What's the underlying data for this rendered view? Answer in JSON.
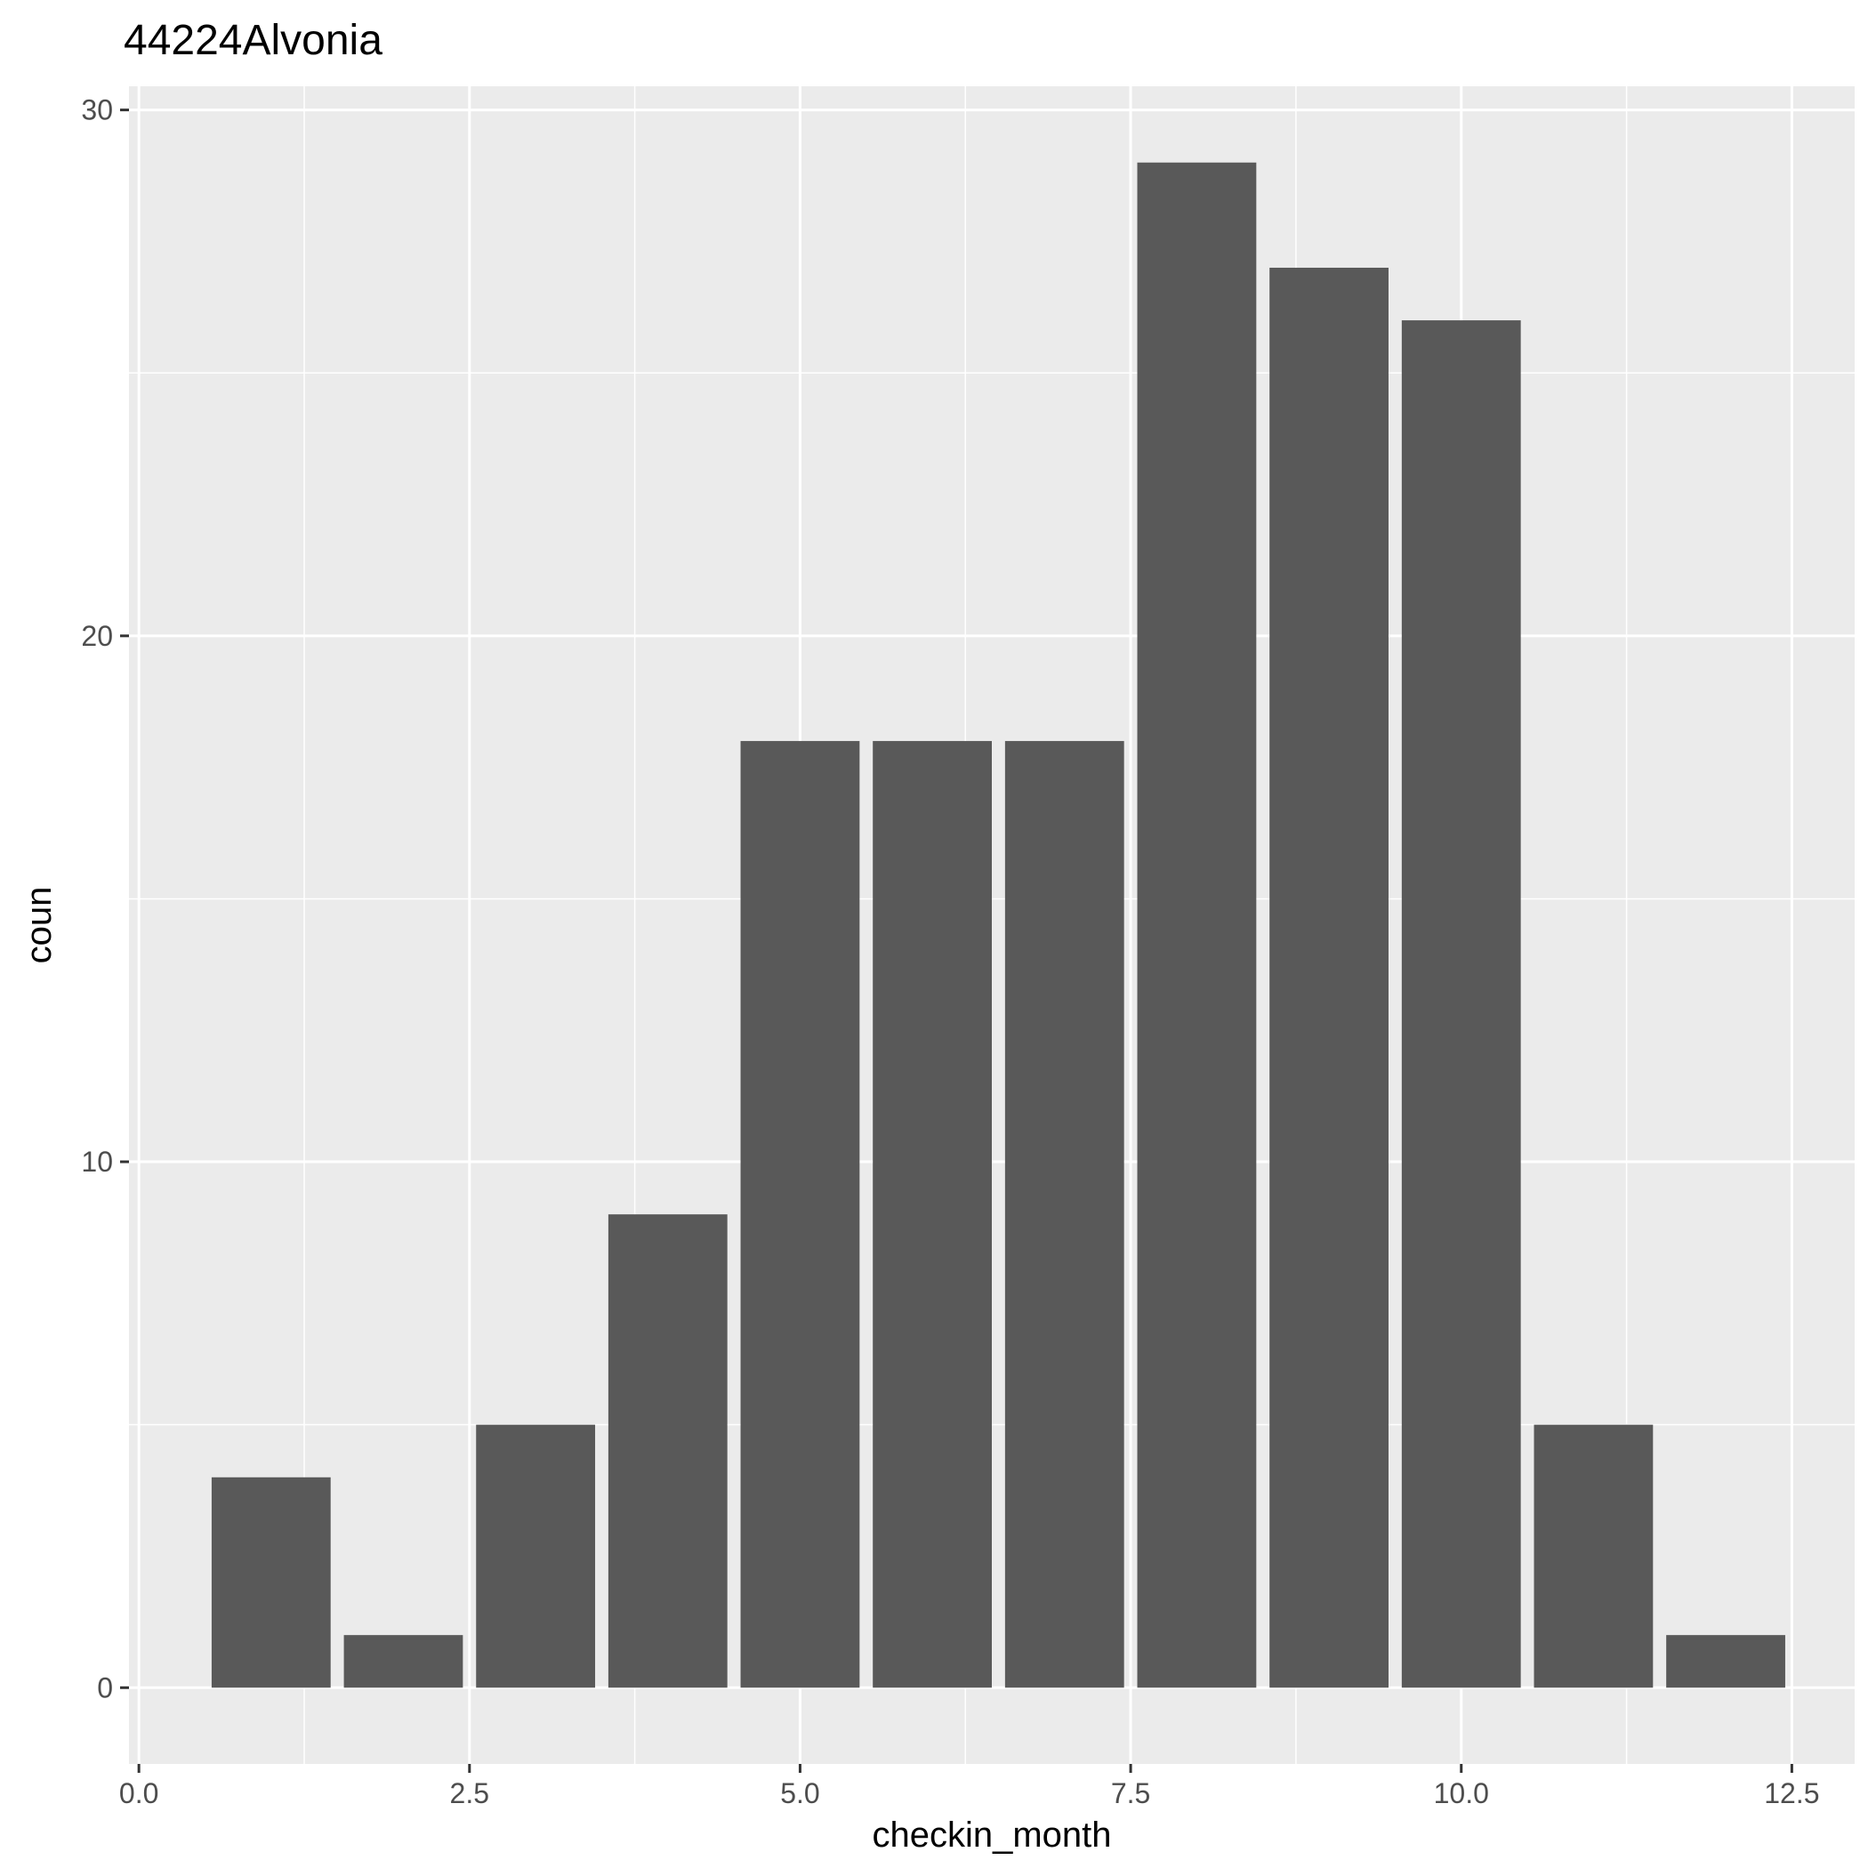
{
  "chart_data": {
    "type": "bar",
    "title": "44224Alvonia",
    "xlabel": "checkin_month",
    "ylabel": "coun",
    "x": [
      1,
      2,
      3,
      4,
      5,
      6,
      7,
      8,
      9,
      10,
      11,
      12
    ],
    "values": [
      4,
      1,
      5,
      9,
      18,
      18,
      18,
      29,
      27,
      26,
      5,
      1
    ],
    "bar_width": 0.9,
    "xlim": [
      -0.075,
      12.975
    ],
    "ylim": [
      -1.45,
      30.45
    ],
    "x_ticks": [
      0,
      2.5,
      5,
      7.5,
      10,
      12.5
    ],
    "x_tick_labels": [
      "0.0",
      "2.5",
      "5.0",
      "7.5",
      "10.0",
      "12.5"
    ],
    "y_ticks": [
      0,
      10,
      20,
      30
    ],
    "y_tick_labels": [
      "0",
      "10",
      "20",
      "30"
    ],
    "grid": true,
    "legend": "none",
    "colors": {
      "bar": "#595959",
      "panel_background": "#ebebeb",
      "grid": "#ffffff"
    }
  }
}
